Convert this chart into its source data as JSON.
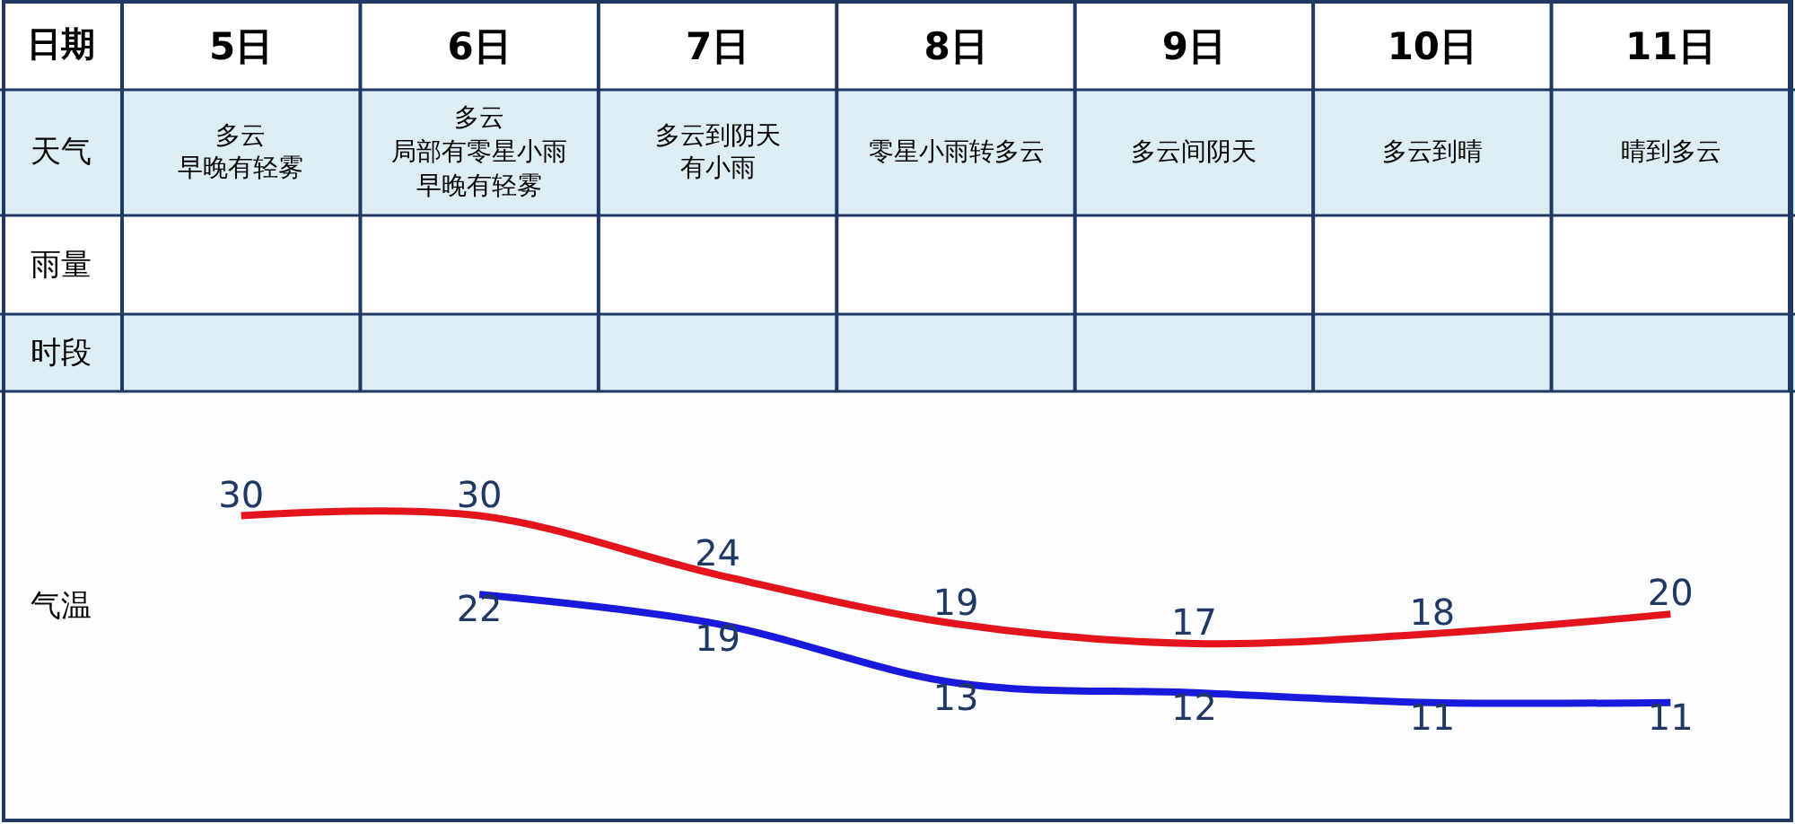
{
  "chart_data": {
    "type": "line",
    "categories": [
      "5日",
      "6日",
      "7日",
      "8日",
      "9日",
      "10日",
      "11日"
    ],
    "series": [
      {
        "color": "#e3141c",
        "values": [
          30,
          30,
          24,
          19,
          17,
          18,
          20
        ]
      },
      {
        "color": "#1a1adc",
        "values": [
          null,
          22,
          19,
          13,
          12,
          11,
          11
        ]
      }
    ],
    "tick_labels": "x",
    "data_labels": true,
    "marker": "none",
    "line_style": "solid",
    "grid": false,
    "annotations": [
      "日期",
      "天气",
      "雨量",
      "时段",
      "气温",
      "多云",
      "早晚有轻雾",
      "多云",
      "局部有零星小雨",
      "早晚有轻雾",
      "多云到阴天",
      "有小雨",
      "零星小雨转多云",
      "多云间阴天",
      "多云到晴",
      "晴到多云"
    ]
  }
}
